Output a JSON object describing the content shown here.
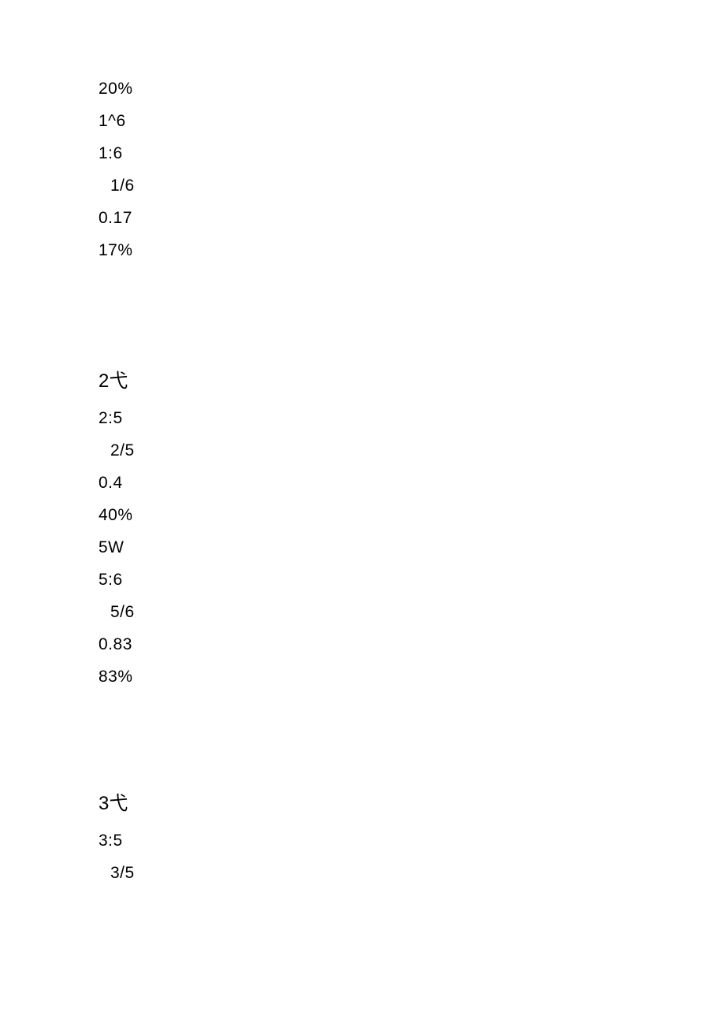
{
  "block1": {
    "l1": "20%",
    "l2": "1^6",
    "l3": "1:6",
    "l4": "1/6",
    "l5": "0.17",
    "l6": "17%"
  },
  "block2": {
    "heading": "2弋",
    "l1": "2:5",
    "l2": "2/5",
    "l3": "0.4",
    "l4": "40%",
    "l5": "5W",
    "l6": "5:6",
    "l7": "5/6",
    "l8": "0.83",
    "l9": "83%"
  },
  "block3": {
    "heading": "3弋",
    "l1": "3:5",
    "l2": "3/5"
  }
}
